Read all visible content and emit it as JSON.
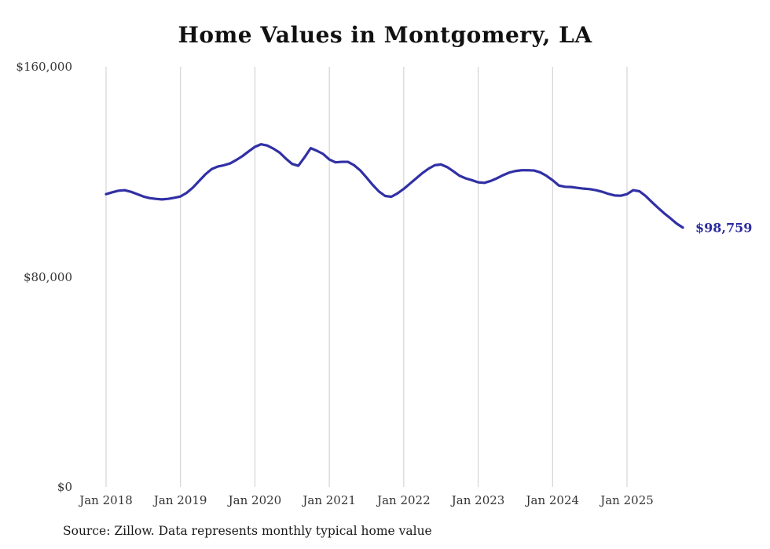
{
  "title": "Home Values in Montgomery, LA",
  "source_note": "Source: Zillow. Data represents monthly typical home value",
  "colors": {
    "line": "#3130a5",
    "grid": "#cccccc",
    "axis_text": "#333333",
    "end_label": "#2b2ba0"
  },
  "chart_data": {
    "type": "line",
    "title": "Home Values in Montgomery, LA",
    "xlabel": "",
    "ylabel": "",
    "ylim": [
      0,
      160000
    ],
    "grid": "vertical-only",
    "legend": "none",
    "end_label": "$98,759",
    "end_value": 98759,
    "yticks": [
      {
        "value": 0,
        "label": "$0"
      },
      {
        "value": 80000,
        "label": "$80,000"
      },
      {
        "value": 160000,
        "label": "$160,000"
      }
    ],
    "xticks": [
      "Jan 2018",
      "Jan 2019",
      "Jan 2020",
      "Jan 2021",
      "Jan 2022",
      "Jan 2023",
      "Jan 2024",
      "Jan 2025"
    ],
    "months": [
      "2018-01",
      "2018-02",
      "2018-03",
      "2018-04",
      "2018-05",
      "2018-06",
      "2018-07",
      "2018-08",
      "2018-09",
      "2018-10",
      "2018-11",
      "2018-12",
      "2019-01",
      "2019-02",
      "2019-03",
      "2019-04",
      "2019-05",
      "2019-06",
      "2019-07",
      "2019-08",
      "2019-09",
      "2019-10",
      "2019-11",
      "2019-12",
      "2020-01",
      "2020-02",
      "2020-03",
      "2020-04",
      "2020-05",
      "2020-06",
      "2020-07",
      "2020-08",
      "2020-09",
      "2020-10",
      "2020-11",
      "2020-12",
      "2021-01",
      "2021-02",
      "2021-03",
      "2021-04",
      "2021-05",
      "2021-06",
      "2021-07",
      "2021-08",
      "2021-09",
      "2021-10",
      "2021-11",
      "2021-12",
      "2022-01",
      "2022-02",
      "2022-03",
      "2022-04",
      "2022-05",
      "2022-06",
      "2022-07",
      "2022-08",
      "2022-09",
      "2022-10",
      "2022-11",
      "2022-12",
      "2023-01",
      "2023-02",
      "2023-03",
      "2023-04",
      "2023-05",
      "2023-06",
      "2023-07",
      "2023-08",
      "2023-09",
      "2023-10",
      "2023-11",
      "2023-12",
      "2024-01",
      "2024-02",
      "2024-03",
      "2024-04",
      "2024-05",
      "2024-06",
      "2024-07",
      "2024-08",
      "2024-09",
      "2024-10",
      "2024-11",
      "2024-12",
      "2025-01",
      "2025-02",
      "2025-03",
      "2025-04",
      "2025-05",
      "2025-06",
      "2025-07",
      "2025-08",
      "2025-09",
      "2025-10"
    ],
    "values": [
      111500,
      112200,
      112800,
      113000,
      112400,
      111500,
      110600,
      110000,
      109700,
      109500,
      109700,
      110100,
      110600,
      112000,
      114000,
      116500,
      119000,
      121000,
      122000,
      122500,
      123200,
      124500,
      126000,
      127800,
      129500,
      130500,
      130000,
      128800,
      127300,
      125000,
      123000,
      122300,
      125500,
      129000,
      128000,
      126800,
      124700,
      123600,
      123800,
      123800,
      122500,
      120500,
      117800,
      115000,
      112500,
      110800,
      110500,
      111800,
      113500,
      115500,
      117500,
      119500,
      121200,
      122500,
      122800,
      121800,
      120200,
      118500,
      117500,
      116800,
      116000,
      115800,
      116500,
      117500,
      118700,
      119700,
      120300,
      120600,
      120600,
      120500,
      119800,
      118500,
      116800,
      114800,
      114300,
      114200,
      113900,
      113600,
      113400,
      113000,
      112400,
      111600,
      111000,
      110900,
      111500,
      113000,
      112600,
      110800,
      108500,
      106300,
      104200,
      102300,
      100300,
      98759
    ]
  }
}
